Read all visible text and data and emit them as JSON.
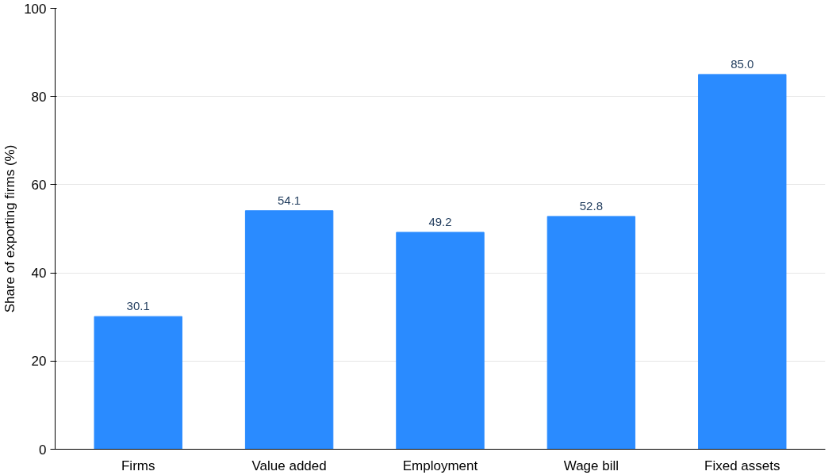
{
  "chart_data": {
    "type": "bar",
    "ylabel": "Share of exporting firms (%)",
    "categories": [
      "Firms",
      "Value added",
      "Employment",
      "Wage bill",
      "Fixed assets"
    ],
    "values": [
      30.1,
      54.1,
      49.2,
      52.8,
      85.0
    ],
    "value_labels": [
      "30.1",
      "54.1",
      "49.2",
      "52.8",
      "85.0"
    ],
    "color": "#2a8bff",
    "ylim": [
      0,
      100
    ],
    "yticks": [
      0,
      20,
      40,
      60,
      80,
      100
    ],
    "grid": "y"
  }
}
